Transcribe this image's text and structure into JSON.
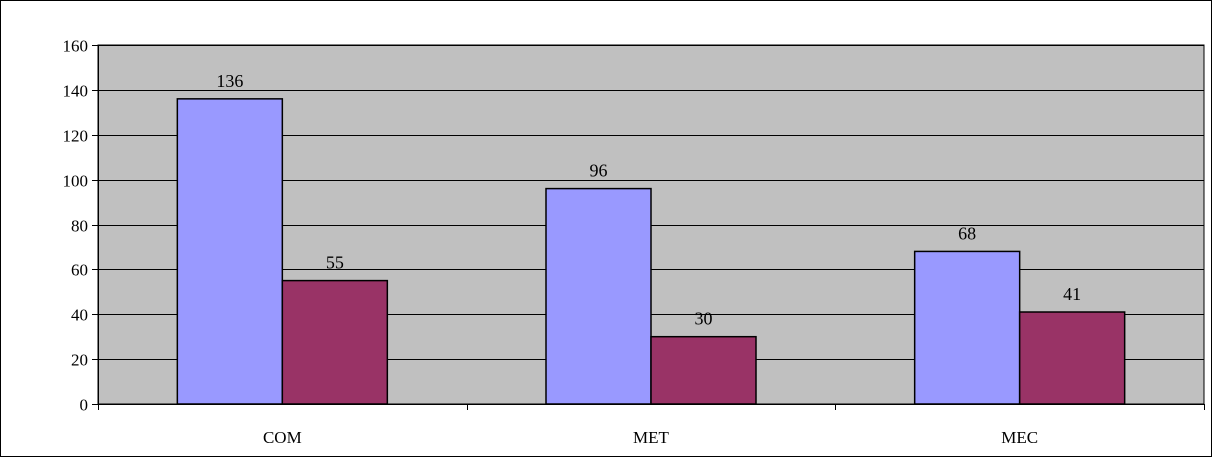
{
  "chart_data": {
    "type": "bar",
    "title": "",
    "xlabel": "",
    "ylabel": "",
    "categories": [
      "COM",
      "MET",
      "MEC"
    ],
    "series": [
      {
        "values": [
          136,
          96,
          68
        ],
        "color": "#9999ff"
      },
      {
        "values": [
          55,
          30,
          41
        ],
        "color": "#993366"
      }
    ],
    "ylim": [
      0,
      160
    ],
    "yticks": [
      0,
      20,
      40,
      60,
      80,
      100,
      120,
      140,
      160
    ],
    "grid": true,
    "legend": "none",
    "plot_background": "#c0c0c0",
    "gridline_color": "#000000",
    "bar_outline_color": "#000000"
  }
}
